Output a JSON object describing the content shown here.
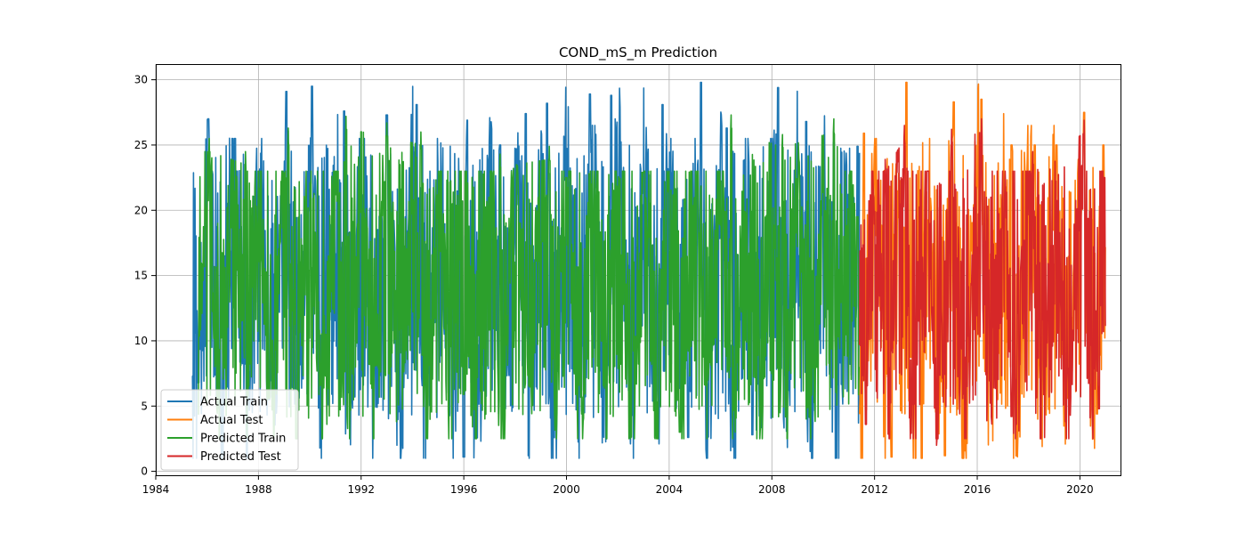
{
  "chart_data": {
    "type": "line",
    "title": "COND_mS_m Prediction",
    "xlabel": "",
    "ylabel": "",
    "xlim": [
      "1984-01-01",
      "2021-08-01"
    ],
    "ylim": [
      -0.3,
      31.2
    ],
    "x_ticks": [
      "1984",
      "1988",
      "1992",
      "1996",
      "2000",
      "2004",
      "2008",
      "2012",
      "2016",
      "2020"
    ],
    "y_ticks": [
      0,
      5,
      10,
      15,
      20,
      25,
      30
    ],
    "grid": true,
    "legend_position": "lower-left",
    "series": [
      {
        "name": "Actual Train",
        "color": "#1f77b4",
        "x_range": [
          "1985-06-01",
          "2011-06-01"
        ],
        "points": [
          [
            "1985-06-01",
            7.3
          ],
          [
            "1985-09-01",
            6.8
          ],
          [
            "1986-01-15",
            27.0
          ],
          [
            "1987-03-01",
            23.0
          ],
          [
            "1988-06-01",
            5.5
          ],
          [
            "1989-02-01",
            29.1
          ],
          [
            "1990-02-01",
            29.5
          ],
          [
            "1991-05-01",
            27.6
          ],
          [
            "1991-10-01",
            5.7
          ],
          [
            "1993-01-01",
            27.3
          ],
          [
            "1994-03-01",
            28.1
          ],
          [
            "1995-06-01",
            6.0
          ],
          [
            "1996-01-01",
            1.1
          ],
          [
            "1996-02-15",
            26.9
          ],
          [
            "1997-06-01",
            25.0
          ],
          [
            "1998-06-01",
            27.4
          ],
          [
            "1999-04-01",
            28.2
          ],
          [
            "2000-12-01",
            28.9
          ],
          [
            "2001-10-01",
            28.8
          ],
          [
            "2003-10-01",
            28.1
          ],
          [
            "2004-10-01",
            2.6
          ],
          [
            "2005-04-01",
            29.8
          ],
          [
            "2006-04-01",
            26.3
          ],
          [
            "2007-04-01",
            2.8
          ],
          [
            "2008-04-01",
            29.4
          ],
          [
            "2009-05-01",
            26.8
          ],
          [
            "2010-06-01",
            25.2
          ],
          [
            "2011-05-01",
            24.9
          ]
        ]
      },
      {
        "name": "Actual Test",
        "color": "#ff7f0e",
        "x_range": [
          "2011-06-01",
          "2021-01-01"
        ],
        "points": [
          [
            "2011-08-01",
            25.9
          ],
          [
            "2012-09-01",
            1.1
          ],
          [
            "2013-04-01",
            29.8
          ],
          [
            "2013-11-01",
            1.0
          ],
          [
            "2014-10-01",
            1.2
          ],
          [
            "2015-02-01",
            28.3
          ],
          [
            "2016-03-01",
            28.5
          ],
          [
            "2017-05-01",
            25.0
          ],
          [
            "2018-04-01",
            25.0
          ],
          [
            "2019-02-01",
            25.0
          ],
          [
            "2019-07-01",
            5.6
          ],
          [
            "2020-03-01",
            27.5
          ],
          [
            "2020-09-01",
            4.4
          ],
          [
            "2020-12-01",
            25.0
          ]
        ]
      },
      {
        "name": "Predicted Train",
        "color": "#2ca02c",
        "x_range": [
          "1985-09-01",
          "2011-06-01"
        ],
        "points": [
          [
            "1986-02-01",
            25.5
          ],
          [
            "1987-07-01",
            24.5
          ],
          [
            "1988-06-01",
            5.6
          ],
          [
            "1989-03-01",
            26.3
          ],
          [
            "1990-06-01",
            6.6
          ],
          [
            "1991-06-01",
            27.2
          ],
          [
            "1993-01-01",
            26.7
          ],
          [
            "1994-05-01",
            26.0
          ],
          [
            "1996-01-01",
            5.9
          ],
          [
            "1997-06-01",
            24.3
          ],
          [
            "1999-05-01",
            24.9
          ],
          [
            "2000-01-01",
            22.5
          ],
          [
            "2003-01-01",
            22.9
          ],
          [
            "2004-06-01",
            3.0
          ],
          [
            "2006-06-01",
            27.3
          ],
          [
            "2008-06-01",
            25.8
          ],
          [
            "2010-06-01",
            27.0
          ],
          [
            "2011-05-01",
            19.5
          ]
        ]
      },
      {
        "name": "Predicted Test",
        "color": "#d62728",
        "x_range": [
          "2011-06-01",
          "2021-01-01"
        ],
        "points": [
          [
            "2011-09-01",
            3.6
          ],
          [
            "2012-06-01",
            23.9
          ],
          [
            "2013-03-01",
            26.5
          ],
          [
            "2014-06-01",
            2.0
          ],
          [
            "2015-01-01",
            26.2
          ],
          [
            "2016-03-01",
            27.0
          ],
          [
            "2017-05-01",
            4.2
          ],
          [
            "2018-03-01",
            24.5
          ],
          [
            "2020-03-01",
            26.9
          ],
          [
            "2020-10-01",
            4.8
          ],
          [
            "2020-12-15",
            22.5
          ]
        ]
      }
    ]
  }
}
